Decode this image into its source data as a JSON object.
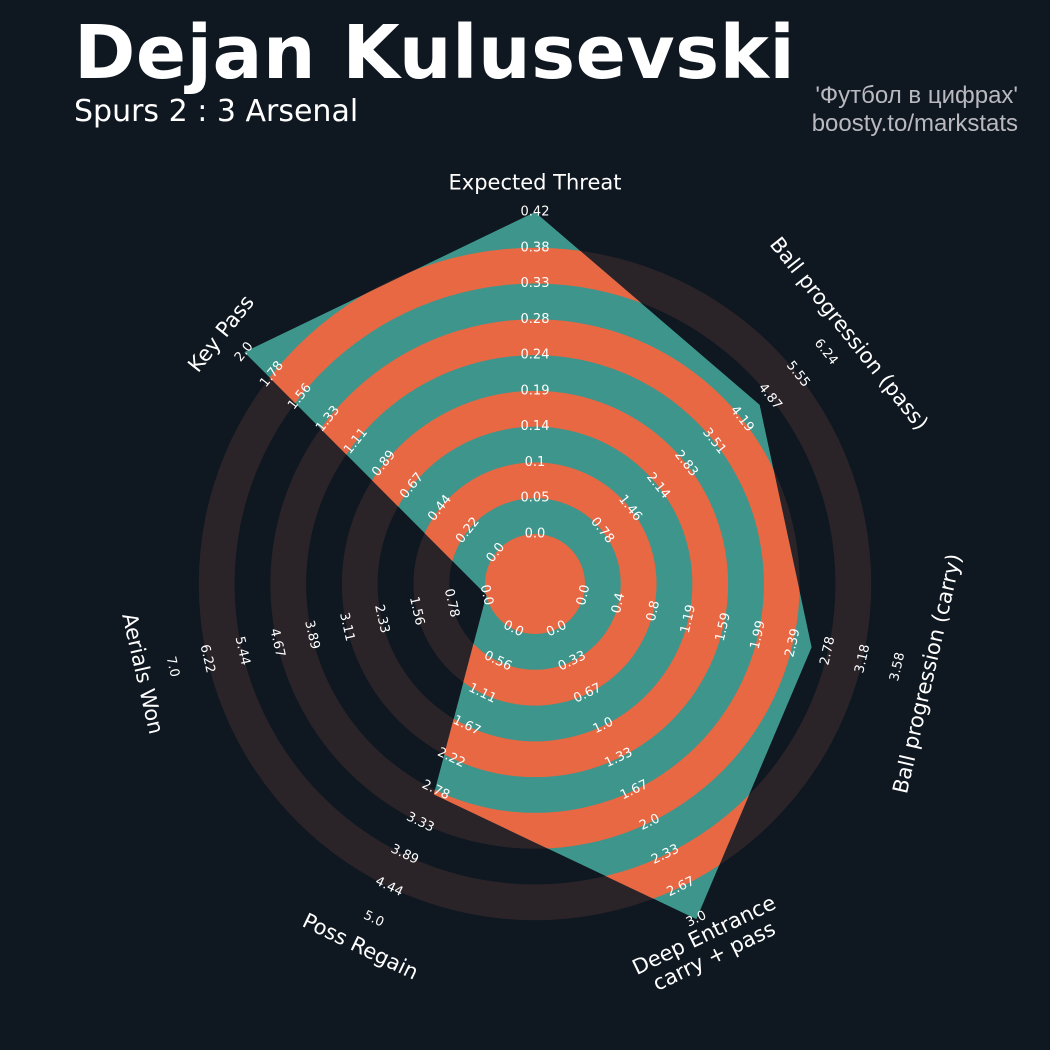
{
  "header": {
    "title": "Dejan Kulusevski",
    "subtitle": "Spurs 2 : 3 Arsenal",
    "credit_line1": "'Футбол в цифрах'",
    "credit_line2": "boosty.to/markstats"
  },
  "colors": {
    "background": "#0f1720",
    "ring_band": "#2a2429",
    "fill_teal": "#3d958c",
    "fill_orange": "#e76842",
    "label_text": "#ffffff"
  },
  "chart_data": {
    "type": "radar",
    "axes": [
      {
        "label": "Expected Threat",
        "min": 0.0,
        "max": 0.42,
        "value": 0.42,
        "ticks": [
          "0.0",
          "0.05",
          "0.1",
          "0.14",
          "0.19",
          "0.24",
          "0.28",
          "0.33",
          "0.38",
          "0.42"
        ]
      },
      {
        "label": "Ball progression (pass)",
        "min": 0.0,
        "max": 6.24,
        "value": 4.6,
        "ticks": [
          "0.78",
          "1.46",
          "2.14",
          "2.83",
          "3.51",
          "4.19",
          "4.87",
          "5.55",
          "6.24"
        ]
      },
      {
        "label": "Ball progression (carry)",
        "min": 0.0,
        "max": 3.58,
        "value": 2.6,
        "ticks": [
          "0.0",
          "0.4",
          "0.8",
          "1.19",
          "1.59",
          "1.99",
          "2.39",
          "2.78",
          "3.18",
          "3.58"
        ]
      },
      {
        "label": "Deep Entrance\ncarry + pass",
        "min": 0.0,
        "max": 3.0,
        "value": 3.0,
        "ticks": [
          "0.0",
          "0.33",
          "0.67",
          "1.0",
          "1.33",
          "1.67",
          "2.0",
          "2.33",
          "2.67",
          "3.0"
        ]
      },
      {
        "label": "Poss Regain",
        "min": 0.0,
        "max": 5.0,
        "value": 2.85,
        "ticks": [
          "0.0",
          "0.56",
          "1.11",
          "1.67",
          "2.22",
          "2.78",
          "3.33",
          "3.89",
          "4.44",
          "5.0"
        ]
      },
      {
        "label": "Aerials Won",
        "min": 0.0,
        "max": 7.0,
        "value": 0.0,
        "ticks": [
          "0.0",
          "0.78",
          "1.56",
          "2.33",
          "3.11",
          "3.89",
          "4.67",
          "5.44",
          "6.22",
          "7.0"
        ]
      },
      {
        "label": "Key Pass",
        "min": 0.0,
        "max": 2.0,
        "value": 2.0,
        "ticks": [
          "0.0",
          "0.22",
          "0.44",
          "0.67",
          "0.89",
          "1.11",
          "1.33",
          "1.56",
          "1.78",
          "2.0"
        ]
      }
    ]
  }
}
